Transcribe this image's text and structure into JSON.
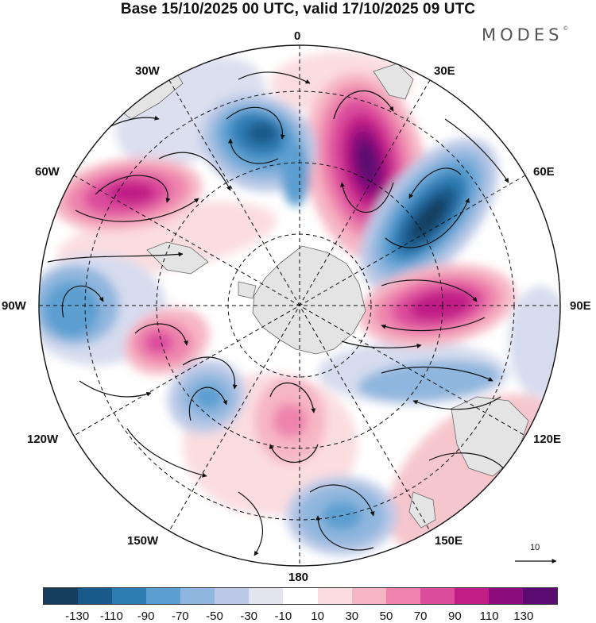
{
  "title": "Base 15/10/2025 00 UTC, valid 17/10/2025 09 UTC",
  "brand": "MODES",
  "brand_mark": "©",
  "map": {
    "projection": "south-polar-stereographic",
    "longitude_labels": [
      {
        "id": "0",
        "text": "0"
      },
      {
        "id": "30e",
        "text": "30E"
      },
      {
        "id": "60e",
        "text": "60E"
      },
      {
        "id": "90e",
        "text": "90E"
      },
      {
        "id": "120e",
        "text": "120E"
      },
      {
        "id": "150e",
        "text": "150E"
      },
      {
        "id": "180",
        "text": "180"
      },
      {
        "id": "150w",
        "text": "150W"
      },
      {
        "id": "120w",
        "text": "120W"
      },
      {
        "id": "90w",
        "text": "90W"
      },
      {
        "id": "60w",
        "text": "60W"
      },
      {
        "id": "30w",
        "text": "30W"
      }
    ],
    "vector_scale_label": "10"
  },
  "colorbar": {
    "ticks": [
      "-130",
      "-110",
      "-90",
      "-70",
      "-50",
      "-30",
      "-10",
      "10",
      "30",
      "50",
      "70",
      "90",
      "110",
      "130"
    ],
    "colors": [
      "#163e5e",
      "#1a5a8a",
      "#2d7cb4",
      "#5b9fd0",
      "#8fb6de",
      "#bcc9e6",
      "#e4e4f1",
      "#ffffff",
      "#fbdde0",
      "#f6b6c4",
      "#ee84ad",
      "#dc4c9c",
      "#c01d86",
      "#8c0c7d",
      "#5a0a70"
    ]
  },
  "icons": {
    "scale-arrow": "arrow-right-icon"
  }
}
